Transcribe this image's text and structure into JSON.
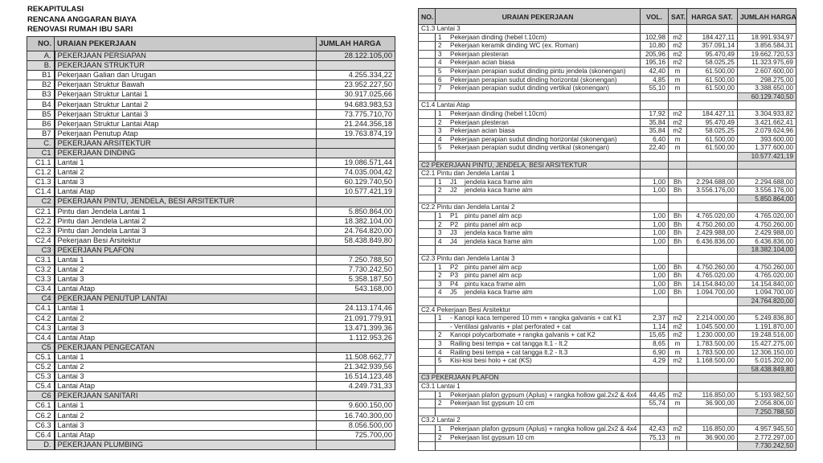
{
  "summary": {
    "titles": [
      "REKAPITULASI",
      "RENCANA ANGGARAN BIAYA",
      "RENOVASI RUMAH IBU SARI"
    ],
    "headers": {
      "no": "NO.",
      "desc": "URAIAN PEKERJAAN",
      "amount": "JUMLAH HARGA"
    },
    "rows": [
      {
        "no": "A.",
        "desc": "PEKERJAAN PERSIAPAN",
        "amount": "28.122.105,00",
        "section": true
      },
      {
        "no": "B.",
        "desc": "PEKERJAAN STRUKTUR",
        "amount": "",
        "section": true
      },
      {
        "no": "B1",
        "desc": "Pekerjaan Galian dan Urugan",
        "amount": "4.255.334,22"
      },
      {
        "no": "B2",
        "desc": "Pekerjaan Struktur Bawah",
        "amount": "23.952.227,50"
      },
      {
        "no": "B3",
        "desc": "Pekerjaan Struktur Lantai 1",
        "amount": "30.917.025,66"
      },
      {
        "no": "B4",
        "desc": "Pekerjaan Struktur Lantai 2",
        "amount": "94.683.983,53"
      },
      {
        "no": "B5",
        "desc": "Pekerjaan Struktur Lantai 3",
        "amount": "73.775.710,70"
      },
      {
        "no": "B6",
        "desc": "Pekerjaan Struktur Lantai Atap",
        "amount": "21.244.356,18"
      },
      {
        "no": "B7",
        "desc": "Pekerjaan Penutup Atap",
        "amount": "19.763.874,19"
      },
      {
        "no": "C.",
        "desc": "PEKERJAAN ARSITEKTUR",
        "amount": "",
        "section": true
      },
      {
        "no": "C1",
        "desc": "PEKERJAAN DINDING",
        "amount": "",
        "section": true
      },
      {
        "no": "C1.1",
        "desc": "Lantai 1",
        "amount": "19.086.571,44"
      },
      {
        "no": "C1.2",
        "desc": "Lantai 2",
        "amount": "74.035.004,42"
      },
      {
        "no": "C1.3",
        "desc": "Lantai 3",
        "amount": "60.129.740,50"
      },
      {
        "no": "C1.4",
        "desc": "Lantai Atap",
        "amount": "10.577.421,19"
      },
      {
        "no": "C2",
        "desc": "PEKERJAAN PINTU, JENDELA, BESI ARSITEKTUR",
        "amount": "",
        "section": true
      },
      {
        "no": "C2.1",
        "desc": "Pintu dan Jendela Lantai 1",
        "amount": "5.850.864,00"
      },
      {
        "no": "C2.2",
        "desc": "Pintu dan Jendela Lantai 2",
        "amount": "18.382.104,00"
      },
      {
        "no": "C2.3",
        "desc": "Pintu dan Jendela Lantai 3",
        "amount": "24.764.820,00"
      },
      {
        "no": "C2.4",
        "desc": "Pekerjaan Besi Arsitektur",
        "amount": "58.438.849,80"
      },
      {
        "no": "C3",
        "desc": "PEKERJAAN PLAFON",
        "amount": "",
        "section": true
      },
      {
        "no": "C3.1",
        "desc": "Lantai 1",
        "amount": "7.250.788,50"
      },
      {
        "no": "C3.2",
        "desc": "Lantai 2",
        "amount": "7.730.242,50"
      },
      {
        "no": "C3.3",
        "desc": "Lantai 3",
        "amount": "5.358.187,50"
      },
      {
        "no": "C3.4",
        "desc": "Lantai Atap",
        "amount": "543.168,00"
      },
      {
        "no": "C4",
        "desc": "PEKERJAAN PENUTUP LANTAI",
        "amount": "",
        "section": true
      },
      {
        "no": "C4.1",
        "desc": "Lantai 1",
        "amount": "24.113.174,46"
      },
      {
        "no": "C4.2",
        "desc": "Lantai 2",
        "amount": "21.091.779,91"
      },
      {
        "no": "C4.3",
        "desc": "Lantai 3",
        "amount": "13.471.399,36"
      },
      {
        "no": "C4.4",
        "desc": "Lantai Atap",
        "amount": "1.112.953,26"
      },
      {
        "no": "C5",
        "desc": "PEKERJAAN PENGECATAN",
        "amount": "",
        "section": true
      },
      {
        "no": "C5.1",
        "desc": "Lantai 1",
        "amount": "11.508.662,77"
      },
      {
        "no": "C5.2",
        "desc": "Lantai 2",
        "amount": "21.342.939,56"
      },
      {
        "no": "C5.3",
        "desc": "Lantai 3",
        "amount": "16.514.123,48"
      },
      {
        "no": "C5.4",
        "desc": "Lantai Atap",
        "amount": "4.249.731,33"
      },
      {
        "no": "C6",
        "desc": "PEKERJAAN SANITARI",
        "amount": "",
        "section": true
      },
      {
        "no": "C6.1",
        "desc": "Lantai 1",
        "amount": "9.600.150,00"
      },
      {
        "no": "C6.2",
        "desc": "Lantai 2",
        "amount": "16.740.300,00"
      },
      {
        "no": "C6.3",
        "desc": "Lantai 3",
        "amount": "8.056.500,00"
      },
      {
        "no": "C6.4",
        "desc": "Lantai Atap",
        "amount": "725.700,00"
      },
      {
        "no": "D.",
        "desc": "PEKERJAAN PLUMBING",
        "amount": "",
        "section": true
      }
    ]
  },
  "detail": {
    "headers": {
      "no": "NO.",
      "desc": "URAIAN PEKERJAAN",
      "vol": "VOL.",
      "sat": "SAT.",
      "price": "HARGA SAT.",
      "total": "JUMLAH HARGA"
    },
    "rows": [
      {
        "type": "group",
        "no": "C1.3",
        "desc": "Lantai 3"
      },
      {
        "type": "item",
        "n": "1",
        "desc": "Pekerjaan dinding (hebel t.10cm)",
        "vol": "102,98",
        "sat": "m2",
        "price": "184.427,11",
        "total": "18.991.934,97"
      },
      {
        "type": "item",
        "n": "2",
        "desc": "Pekerjaan keramik dinding WC (ex. Roman)",
        "vol": "10,80",
        "sat": "m2",
        "price": "357.091,14",
        "total": "3.856.584,31"
      },
      {
        "type": "item",
        "n": "3",
        "desc": "Pekerjaan plesteran",
        "vol": "205,96",
        "sat": "m2",
        "price": "95.470,49",
        "total": "19.662.720,53"
      },
      {
        "type": "item",
        "n": "4",
        "desc": "Pekerjaan acian biasa",
        "vol": "195,16",
        "sat": "m2",
        "price": "58.025,25",
        "total": "11.323.975,69"
      },
      {
        "type": "item",
        "n": "5",
        "desc": "Pekerjaan perapian sudut dinding pintu jendela (skonengan)",
        "vol": "42,40",
        "sat": "m",
        "price": "61.500,00",
        "total": "2.607.600,00"
      },
      {
        "type": "item",
        "n": "6",
        "desc": "Pekerjaan perapian sudut dinding horizontal (skonengan)",
        "vol": "4,85",
        "sat": "m",
        "price": "61.500,00",
        "total": "298.275,00"
      },
      {
        "type": "item",
        "n": "7",
        "desc": "Pekerjaan perapian sudut dinding vertikal (skonengan)",
        "vol": "55,10",
        "sat": "m",
        "price": "61.500,00",
        "total": "3.388.650,00"
      },
      {
        "type": "subtotal",
        "total": "60.129.740,50"
      },
      {
        "type": "group",
        "no": "C1.4",
        "desc": "Lantai Atap"
      },
      {
        "type": "item",
        "n": "1",
        "desc": "Pekerjaan dinding (hebel t.10cm)",
        "vol": "17,92",
        "sat": "m2",
        "price": "184.427,11",
        "total": "3.304.933,82"
      },
      {
        "type": "item",
        "n": "2",
        "desc": "Pekerjaan plesteran",
        "vol": "35,84",
        "sat": "m2",
        "price": "95.470,49",
        "total": "3.421.662,41"
      },
      {
        "type": "item",
        "n": "3",
        "desc": "Pekerjaan acian biasa",
        "vol": "35,84",
        "sat": "m2",
        "price": "58.025,25",
        "total": "2.079.624,96"
      },
      {
        "type": "item",
        "n": "4",
        "desc": "Pekerjaan perapian sudut dinding horizontal (skonengan)",
        "vol": "6,40",
        "sat": "m",
        "price": "61.500,00",
        "total": "393.600,00"
      },
      {
        "type": "item",
        "n": "5",
        "desc": "Pekerjaan perapian sudut dinding vertikal (skonengan)",
        "vol": "22,40",
        "sat": "m",
        "price": "61.500,00",
        "total": "1.377.600,00"
      },
      {
        "type": "subtotal",
        "total": "10.577.421,19"
      },
      {
        "type": "section",
        "no": "C2",
        "desc": "PEKERJAAN PINTU, JENDELA, BESI ARSITEKTUR"
      },
      {
        "type": "group",
        "no": "C2.1",
        "desc": "Pintu dan Jendela Lantai 1"
      },
      {
        "type": "item",
        "n": "1",
        "code": "J1",
        "desc": "jendela kaca frame alm",
        "vol": "1,00",
        "sat": "Bh",
        "price": "2.294.688,00",
        "total": "2.294.688,00"
      },
      {
        "type": "item",
        "n": "2",
        "code": "J2",
        "desc": "jendela kaca frame alm",
        "vol": "1,00",
        "sat": "Bh",
        "price": "3.556.176,00",
        "total": "3.556.176,00"
      },
      {
        "type": "subtotal",
        "total": "5.850.864,00"
      },
      {
        "type": "group",
        "no": "C2.2",
        "desc": "Pintu dan Jendela Lantai 2"
      },
      {
        "type": "item",
        "n": "1",
        "code": "P1",
        "desc": "pintu panel alm acp",
        "vol": "1,00",
        "sat": "Bh",
        "price": "4.765.020,00",
        "total": "4.765.020,00"
      },
      {
        "type": "item",
        "n": "2",
        "code": "P2",
        "desc": "pintu panel alm acp",
        "vol": "1,00",
        "sat": "Bh",
        "price": "4.750.260,00",
        "total": "4.750.260,00"
      },
      {
        "type": "item",
        "n": "3",
        "code": "J3",
        "desc": "jendela kaca frame alm",
        "vol": "1,00",
        "sat": "Bh",
        "price": "2.429.988,00",
        "total": "2.429.988,00"
      },
      {
        "type": "item",
        "n": "4",
        "code": "J4",
        "desc": "jendela kaca frame alm",
        "vol": "1,00",
        "sat": "Bh",
        "price": "6.436.836,00",
        "total": "6.436.836,00"
      },
      {
        "type": "subtotal",
        "total": "18.382.104,00"
      },
      {
        "type": "group",
        "no": "C2.3",
        "desc": "Pintu dan Jendela Lantai 3"
      },
      {
        "type": "item",
        "n": "1",
        "code": "P2",
        "desc": "pintu panel alm acp",
        "vol": "1,00",
        "sat": "Bh",
        "price": "4.750.260,00",
        "total": "4.750.260,00"
      },
      {
        "type": "item",
        "n": "2",
        "code": "P3",
        "desc": "pintu panel alm acp",
        "vol": "1,00",
        "sat": "Bh",
        "price": "4.765.020,00",
        "total": "4.765.020,00"
      },
      {
        "type": "item",
        "n": "3",
        "code": "P4",
        "desc": "pintu kaca frame alm",
        "vol": "1,00",
        "sat": "Bh",
        "price": "14.154.840,00",
        "total": "14.154.840,00"
      },
      {
        "type": "item",
        "n": "4",
        "code": "J5",
        "desc": "jendela kaca frame alm",
        "vol": "1,00",
        "sat": "Bh",
        "price": "1.094.700,00",
        "total": "1.094.700,00"
      },
      {
        "type": "subtotal",
        "total": "24.764.820,00"
      },
      {
        "type": "group",
        "no": "C2.4",
        "desc": "Pekerjaan Besi Arsitektur"
      },
      {
        "type": "item",
        "n": "1",
        "desc": "- Kanopi kaca tempered 10 mm + rangka galvanis + cat K1",
        "vol": "2,37",
        "sat": "m2",
        "price": "2.214.000,00",
        "total": "5.249.836,80"
      },
      {
        "type": "item",
        "n": "",
        "desc": "- Ventilasi galvanis + plat perforated + cat",
        "vol": "1,14",
        "sat": "m2",
        "price": "1.045.500,00",
        "total": "1.191.870,00"
      },
      {
        "type": "item",
        "n": "2",
        "desc": "Kanopi polycarbomate + rangka galvanis + cat K2",
        "vol": "15,65",
        "sat": "m2",
        "price": "1.230.000,00",
        "total": "19.248.516,00"
      },
      {
        "type": "item",
        "n": "3",
        "desc": "Railing besi tempa + cat tangga lt.1 - lt.2",
        "vol": "8,65",
        "sat": "m",
        "price": "1.783.500,00",
        "total": "15.427.275,00"
      },
      {
        "type": "item",
        "n": "4",
        "desc": "Railing besi tempa + cat tangga lt.2 - lt.3",
        "vol": "6,90",
        "sat": "m",
        "price": "1.783.500,00",
        "total": "12.306.150,00"
      },
      {
        "type": "item",
        "n": "5",
        "desc": "Kisi-kisi besi holo + cat (KS)",
        "vol": "4,29",
        "sat": "m2",
        "price": "1.168.500,00",
        "total": "5.015.202,00"
      },
      {
        "type": "subtotal",
        "total": "58.438.849,80"
      },
      {
        "type": "section",
        "no": "C3",
        "desc": "PEKERJAAN PLAFON"
      },
      {
        "type": "group",
        "no": "C3.1",
        "desc": "Lantai 1"
      },
      {
        "type": "item",
        "n": "1",
        "desc": "Pekerjaan plafon gypsum (Aplus) + rangka hollow gal.2x2 & 4x4",
        "vol": "44,45",
        "sat": "m2",
        "price": "116.850,00",
        "total": "5.193.982,50"
      },
      {
        "type": "item",
        "n": "2",
        "desc": "Pekerjaan list gypsum 10 cm",
        "vol": "55,74",
        "sat": "m",
        "price": "36.900,00",
        "total": "2.056.806,00"
      },
      {
        "type": "subtotal",
        "total": "7.250.788,50"
      },
      {
        "type": "group",
        "no": "C3.2",
        "desc": "Lantai 2"
      },
      {
        "type": "item",
        "n": "1",
        "desc": "Pekerjaan plafon gypsum (Aplus) + rangka hollow gal.2x2 & 4x4",
        "vol": "42,43",
        "sat": "m2",
        "price": "116.850,00",
        "total": "4.957.945,50"
      },
      {
        "type": "item",
        "n": "2",
        "desc": "Pekerjaan list gypsum 10 cm",
        "vol": "75,13",
        "sat": "m",
        "price": "36.900,00",
        "total": "2.772.297,00"
      },
      {
        "type": "subtotal",
        "total": "7.730.242,50"
      }
    ]
  }
}
